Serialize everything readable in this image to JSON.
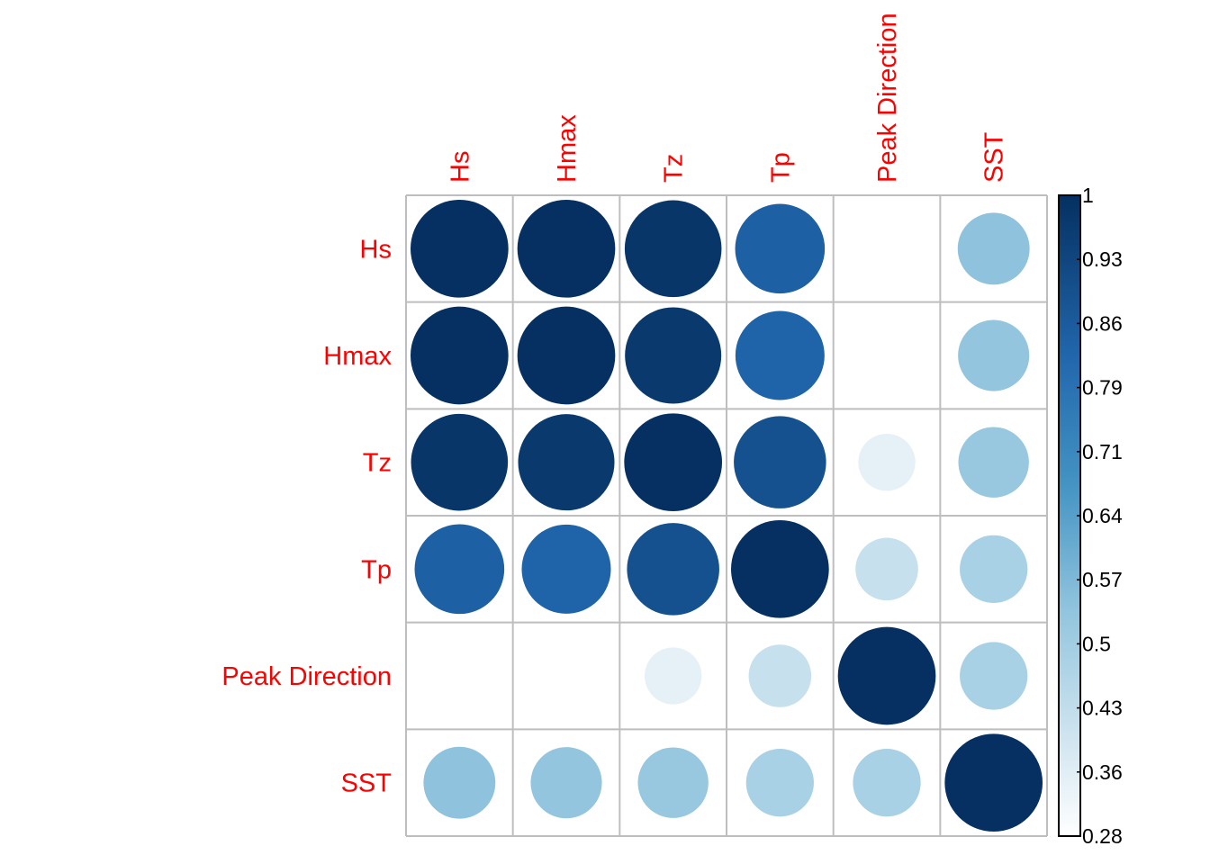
{
  "chart_data": {
    "type": "heatmap",
    "style": "circle correlation matrix",
    "variables": [
      "Hs",
      "Hmax",
      "Tz",
      "Tp",
      "Peak Direction",
      "SST"
    ],
    "matrix": [
      [
        1.0,
        1.0,
        0.98,
        0.84,
        0.27,
        0.54
      ],
      [
        1.0,
        1.0,
        0.97,
        0.83,
        0.27,
        0.53
      ],
      [
        0.98,
        0.97,
        1.0,
        0.89,
        0.34,
        0.52
      ],
      [
        0.84,
        0.83,
        0.89,
        1.0,
        0.41,
        0.48
      ],
      [
        0.27,
        0.27,
        0.34,
        0.41,
        1.0,
        0.48
      ],
      [
        0.54,
        0.53,
        0.52,
        0.48,
        0.48,
        1.0
      ]
    ],
    "colorbar": {
      "ticks": [
        "1",
        "0.93",
        "0.86",
        "0.79",
        "0.71",
        "0.64",
        "0.57",
        "0.5",
        "0.43",
        "0.36",
        "0.28"
      ],
      "range": [
        0.28,
        1
      ],
      "position": "right"
    },
    "label_color": "#ff0000",
    "grid_color": "#bebebe",
    "colors": {
      "high": "#053061",
      "mid_high": "#2166ac",
      "mid": "#4393c3",
      "mid_low": "#92c5de",
      "low": "#d1e5f0",
      "white": "#ffffff"
    }
  }
}
